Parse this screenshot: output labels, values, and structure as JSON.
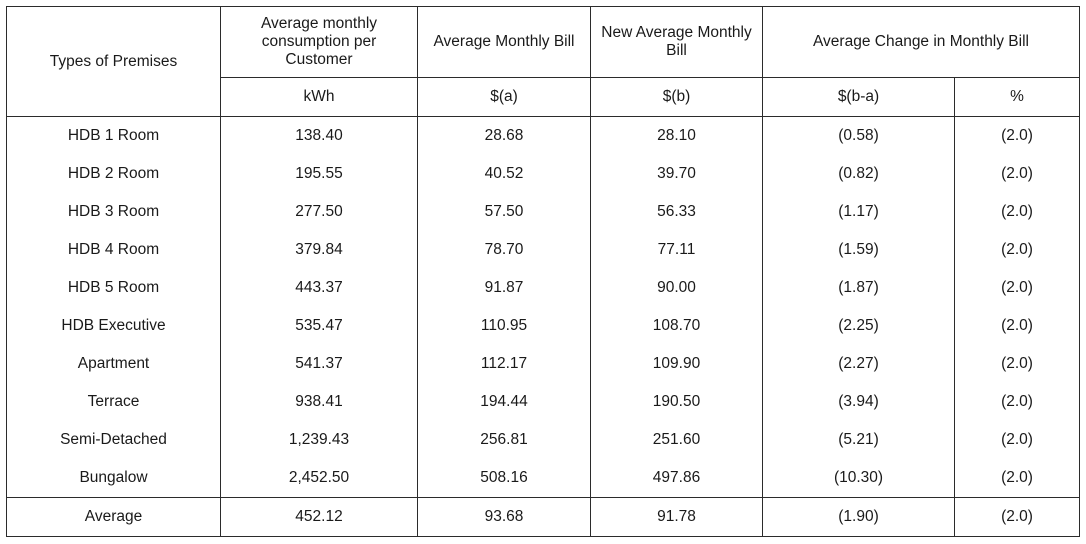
{
  "header": {
    "types": "Types of Premises",
    "consumption": "Average monthly consumption per Customer",
    "avg_bill": "Average Monthly Bill",
    "new_bill": "New Average Monthly Bill",
    "change": "Average Change in Monthly Bill"
  },
  "units": {
    "kwh": "kWh",
    "a": "$(a)",
    "b": "$(b)",
    "ba": "$(b-a)",
    "pct": "%"
  },
  "rows": [
    {
      "type": "HDB 1 Room",
      "kwh": "138.40",
      "a": "28.68",
      "b": "28.10",
      "ba": "(0.58)",
      "pct": "(2.0)"
    },
    {
      "type": "HDB 2 Room",
      "kwh": "195.55",
      "a": "40.52",
      "b": "39.70",
      "ba": "(0.82)",
      "pct": "(2.0)"
    },
    {
      "type": "HDB 3 Room",
      "kwh": "277.50",
      "a": "57.50",
      "b": "56.33",
      "ba": "(1.17)",
      "pct": "(2.0)"
    },
    {
      "type": "HDB 4 Room",
      "kwh": "379.84",
      "a": "78.70",
      "b": "77.11",
      "ba": "(1.59)",
      "pct": "(2.0)"
    },
    {
      "type": "HDB 5 Room",
      "kwh": "443.37",
      "a": "91.87",
      "b": "90.00",
      "ba": "(1.87)",
      "pct": "(2.0)"
    },
    {
      "type": "HDB Executive",
      "kwh": "535.47",
      "a": "110.95",
      "b": "108.70",
      "ba": "(2.25)",
      "pct": "(2.0)"
    },
    {
      "type": "Apartment",
      "kwh": "541.37",
      "a": "112.17",
      "b": "109.90",
      "ba": "(2.27)",
      "pct": "(2.0)"
    },
    {
      "type": "Terrace",
      "kwh": "938.41",
      "a": "194.44",
      "b": "190.50",
      "ba": "(3.94)",
      "pct": "(2.0)"
    },
    {
      "type": "Semi-Detached",
      "kwh": "1,239.43",
      "a": "256.81",
      "b": "251.60",
      "ba": "(5.21)",
      "pct": "(2.0)"
    },
    {
      "type": "Bungalow",
      "kwh": "2,452.50",
      "a": "508.16",
      "b": "497.86",
      "ba": "(10.30)",
      "pct": "(2.0)"
    }
  ],
  "average": {
    "type": "Average",
    "kwh": "452.12",
    "a": "93.68",
    "b": "91.78",
    "ba": "(1.90)",
    "pct": "(2.0)"
  }
}
